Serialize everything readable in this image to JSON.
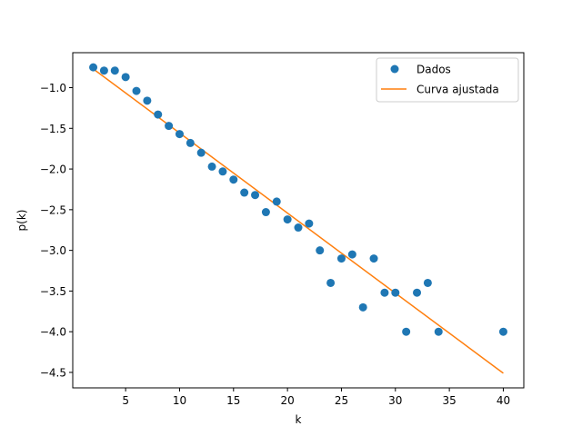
{
  "chart_data": {
    "type": "scatter",
    "xlabel": "k",
    "ylabel": "p(k)",
    "xlim": [
      0.1,
      41.9
    ],
    "ylim": [
      -4.69,
      -0.57
    ],
    "x_ticks": [
      5,
      10,
      15,
      20,
      25,
      30,
      35,
      40
    ],
    "y_ticks": [
      -1.0,
      -1.5,
      -2.0,
      -2.5,
      -3.0,
      -3.5,
      -4.0,
      -4.5
    ],
    "x_tick_labels": [
      "5",
      "10",
      "15",
      "20",
      "25",
      "30",
      "35",
      "40"
    ],
    "y_tick_labels": [
      "−1.0",
      "−1.5",
      "−2.0",
      "−2.5",
      "−3.0",
      "−3.5",
      "−4.0",
      "−4.5"
    ],
    "grid": false,
    "legend_position": "top-right",
    "series": [
      {
        "name": "Dados",
        "kind": "scatter",
        "color": "#1f77b4",
        "x": [
          2,
          3,
          4,
          5,
          6,
          7,
          8,
          9,
          10,
          11,
          12,
          13,
          14,
          15,
          16,
          17,
          18,
          19,
          20,
          21,
          22,
          23,
          24,
          25,
          26,
          27,
          28,
          29,
          30,
          31,
          32,
          33,
          34,
          40
        ],
        "y": [
          -0.75,
          -0.79,
          -0.79,
          -0.87,
          -1.04,
          -1.16,
          -1.33,
          -1.47,
          -1.57,
          -1.68,
          -1.8,
          -1.97,
          -2.03,
          -2.13,
          -2.29,
          -2.32,
          -2.53,
          -2.4,
          -2.62,
          -2.72,
          -2.67,
          -3.0,
          -3.4,
          -3.1,
          -3.05,
          -3.7,
          -3.1,
          -3.52,
          -3.52,
          -4.0,
          -3.52,
          -3.4,
          -4.0,
          -4.0
        ]
      },
      {
        "name": "Curva ajustada",
        "kind": "line",
        "color": "#ff7f0e",
        "x": [
          2,
          40
        ],
        "y": [
          -0.77,
          -4.51
        ]
      }
    ]
  }
}
